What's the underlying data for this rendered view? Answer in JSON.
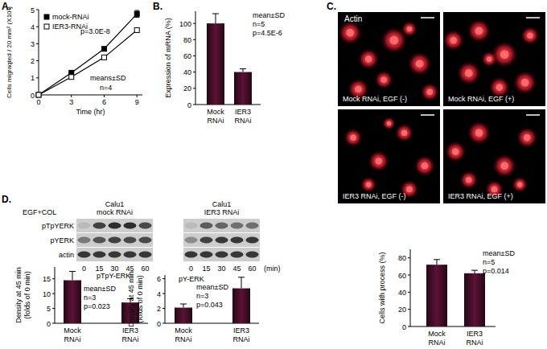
{
  "chart_data": [
    {
      "panel": "A.",
      "type": "line",
      "xlabel": "Time (hr)",
      "ylabel": "Cells migraqted / 20 mm² (X10³)",
      "x": [
        0,
        3,
        6,
        9
      ],
      "xlim": [
        0,
        9.5
      ],
      "xticks": [
        0,
        3,
        6,
        9
      ],
      "ylim": [
        0,
        5
      ],
      "yticks": [
        0,
        1,
        2,
        3,
        4,
        5
      ],
      "series": [
        {
          "name": "mock-RNAi",
          "color": "#000000",
          "marker": "square",
          "values": [
            0,
            1.3,
            2.7,
            4.75
          ],
          "errors": [
            0,
            0.05,
            0.08,
            0.2
          ]
        },
        {
          "name": "IER3-RNAi",
          "color": "#000000",
          "marker": "square-open",
          "values": [
            0,
            1.05,
            2.2,
            3.8
          ],
          "errors": [
            0,
            0.04,
            0.06,
            0.12
          ]
        }
      ],
      "legend": "upper left",
      "annotations": [
        "p=3.0E-8",
        "means±SD",
        "n=4"
      ]
    },
    {
      "panel": "B.",
      "type": "bar",
      "ylabel": "Expression of mRNA (%)",
      "categories": [
        "Mock RNAi",
        "IER3 RNAi"
      ],
      "values": [
        100,
        40
      ],
      "errors": [
        12,
        4
      ],
      "color": "#5c1236",
      "ylim": [
        0,
        115
      ],
      "yticks": [
        0,
        20,
        40,
        60,
        80,
        100
      ],
      "annotations": [
        "mean±SD",
        "n=5",
        "p=4.5E-6"
      ]
    },
    {
      "type": "bar",
      "ylabel": "Cells with process (%)",
      "categories": [
        "Mock RNAi",
        "IER3 RNAi"
      ],
      "values": [
        72,
        62
      ],
      "errors": [
        6,
        3.5
      ],
      "color": "#5c1236",
      "ylim": [
        0,
        90
      ],
      "yticks": [
        0,
        20,
        40,
        60,
        80
      ],
      "annotations": [
        "mean±SD",
        "n=5",
        "p=0.014"
      ]
    },
    {
      "type": "bar",
      "title": "pTpY-ERK",
      "ylabel": [
        "Density at 45 min",
        "(folds of 0 min)"
      ],
      "categories": [
        "Mock RNAi",
        "IER3 RNAi"
      ],
      "values": [
        14.5,
        7
      ],
      "errors": [
        3,
        1.3
      ],
      "color": "#5c1236",
      "ylim": [
        0,
        19
      ],
      "yticks": [
        0,
        5,
        10,
        15
      ],
      "annotations": [
        "mean±SD",
        "n=3",
        "p=0.023"
      ]
    },
    {
      "type": "bar",
      "title": "pY-ERK",
      "ylabel": [
        "Density at 45 min",
        "(folds of 0 min)"
      ],
      "categories": [
        "Mock RNAi",
        "IER3 RNAi"
      ],
      "values": [
        2.1,
        4.7
      ],
      "errors": [
        0.5,
        1.5
      ],
      "color": "#5c1236",
      "ylim": [
        0,
        6.5
      ],
      "yticks": [
        0,
        2,
        4,
        6
      ],
      "annotations": [
        "mean±SD",
        "n=3",
        "p=0.043"
      ]
    }
  ],
  "micrographs": {
    "panel": "C.",
    "stain": "Actin",
    "images": [
      "Mock RNAi, EGF (-)",
      "Mock RNAi, EGF (+)",
      "IER3 RNAi, EGF (-)",
      "IER3 RNAi, EGF (+)"
    ]
  },
  "blot": {
    "panel": "D.",
    "treatment": "EGF+COL",
    "groups": [
      [
        "Calu1",
        "mock RNAi"
      ],
      [
        "Calu1",
        "IER3 RNAi"
      ]
    ],
    "rows": [
      "pTpYERK",
      "pYERK",
      "actin"
    ],
    "times": [
      0,
      15,
      30,
      45,
      60
    ],
    "time_unit": "(min)"
  }
}
